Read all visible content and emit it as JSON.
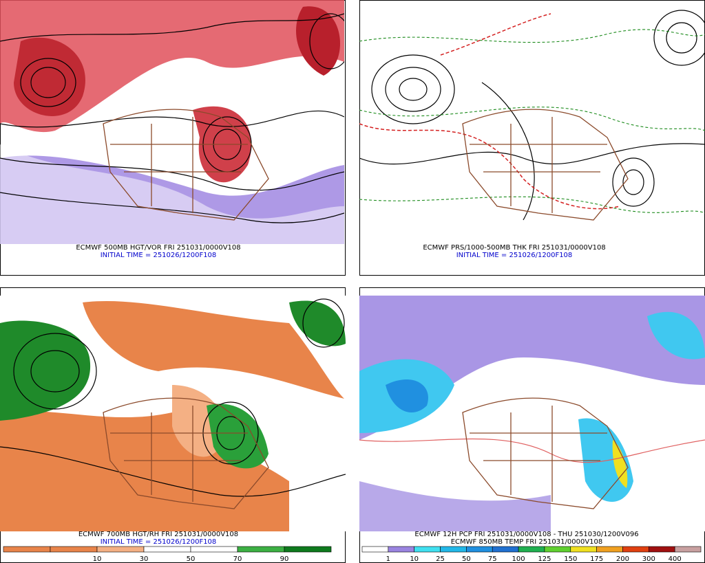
{
  "panels": [
    {
      "caption": [
        "ECMWF 500MB HGT/VOR FRI 251031/0000V108",
        "INITIAL TIME = 251026/1200F108"
      ]
    },
    {
      "caption": [
        "ECMWF PRS/1000-500MB THK FRI 251031/0000V108",
        "INITIAL TIME = 251026/1200F108"
      ]
    },
    {
      "caption": [
        "ECMWF 700MB HGT/RH FRI 251031/0000V108",
        "INITIAL TIME = 251026/1200F108"
      ],
      "colorbar": {
        "labels": [
          "10",
          "30",
          "50",
          "70",
          "90"
        ],
        "colors": [
          "#e8844a",
          "#e8844a",
          "#f4b084",
          "#ffffff",
          "#ffffff",
          "#3cb043",
          "#0e7a1e"
        ]
      }
    },
    {
      "caption": [
        "ECMWF 12H PCP FRI 251031/0000V108 - THU 251030/1200V096",
        "ECMWF 850MB TEMP FRI 251031/0000V108"
      ],
      "colorbar": {
        "labels": [
          "1",
          "10",
          "25",
          "50",
          "75",
          "100",
          "125",
          "150",
          "175",
          "200",
          "300",
          "400"
        ],
        "colors": [
          "#ffffff",
          "#9a84e0",
          "#40e0f0",
          "#22b8e8",
          "#2090e0",
          "#2070d0",
          "#20b050",
          "#60d030",
          "#f0e020",
          "#f0a020",
          "#e04010",
          "#a01010",
          "#c8a0a0"
        ]
      }
    }
  ]
}
